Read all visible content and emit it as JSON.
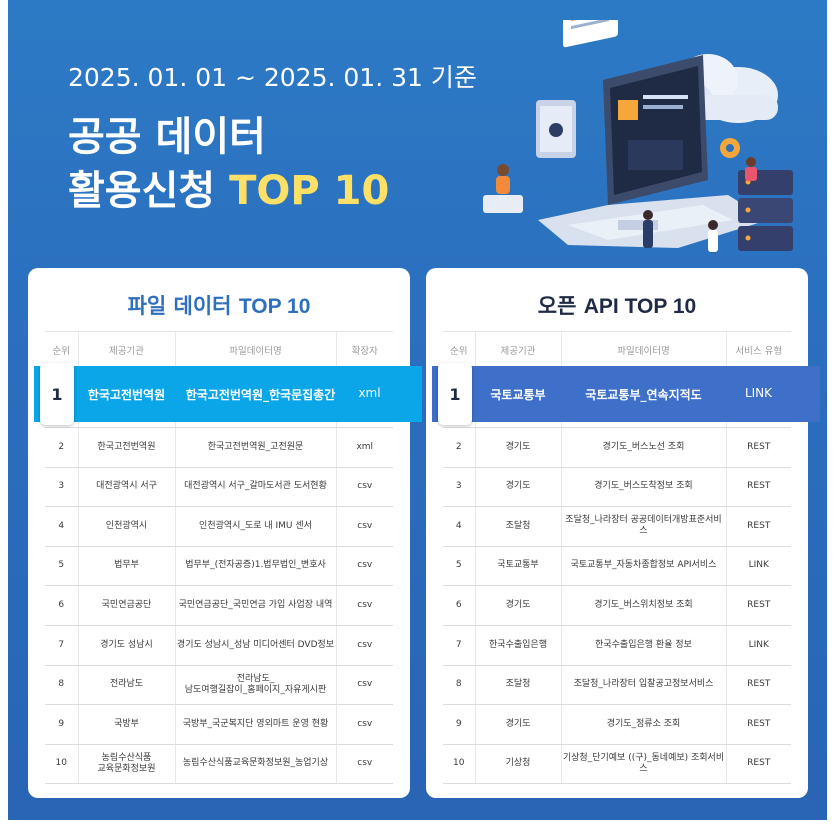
{
  "header": {
    "date_range": "2025. 01. 01 ~ 2025. 01. 31  기준",
    "title_line1": "공공 데이터",
    "title_line2_prefix": "활용신청 ",
    "title_line2_highlight": "TOP 10"
  },
  "colors": {
    "background": "#2b6fbe",
    "highlight_text": "#ffe066",
    "left_rank1_bg": "#0aa6e8",
    "right_rank1_bg": "#3e6fc9"
  },
  "file_data": {
    "title_ko": "파일 데이터 ",
    "title_en": "TOP 10",
    "headers": [
      "순위",
      "제공기관",
      "파일데이터명",
      "확장자"
    ],
    "rows": [
      {
        "rank": "1",
        "org": "한국고전번역원",
        "name": "한국고전번역원_한국문집총간",
        "ext": "xml"
      },
      {
        "rank": "2",
        "org": "한국고전번역원",
        "name": "한국고전번역원_고전원문",
        "ext": "xml"
      },
      {
        "rank": "3",
        "org": "대전광역시 서구",
        "name": "대전광역시 서구_갈마도서관 도서현황",
        "ext": "csv"
      },
      {
        "rank": "4",
        "org": "인천광역시",
        "name": "인천광역시_도로 내 IMU 센서",
        "ext": "csv"
      },
      {
        "rank": "5",
        "org": "법무부",
        "name": "법무부_(전자공증)1.법무법인_변호사",
        "ext": "csv"
      },
      {
        "rank": "6",
        "org": "국민연금공단",
        "name": "국민연금공단_국민연금 가입 사업장 내역",
        "ext": "csv"
      },
      {
        "rank": "7",
        "org": "경기도 성남시",
        "name": "경기도 성남시_성남 미디어센터 DVD정보",
        "ext": "csv"
      },
      {
        "rank": "8",
        "org": "전라남도",
        "name_line1": "전라남도_",
        "name_line2": "남도여행길잡이_홈페이지_자유게시판",
        "ext": "csv"
      },
      {
        "rank": "9",
        "org": "국방부",
        "name": "국방부_국군복지단 영외마트 운영 현황",
        "ext": "csv"
      },
      {
        "rank": "10",
        "org_line1": "농림수산식품",
        "org_line2": "교육문화정보원",
        "name": "농림수산식품교육문화정보원_농업기상",
        "ext": "csv"
      }
    ]
  },
  "open_api": {
    "title_ko": "오픈 ",
    "title_en": "API TOP 10",
    "headers": [
      "순위",
      "제공기관",
      "파일데이터명",
      "서비스 유형"
    ],
    "rows": [
      {
        "rank": "1",
        "org": "국토교통부",
        "name": "국토교통부_연속지적도",
        "type": "LINK"
      },
      {
        "rank": "2",
        "org": "경기도",
        "name": "경기도_버스노선 조회",
        "type": "REST"
      },
      {
        "rank": "3",
        "org": "경기도",
        "name": "경기도_버스도착정보 조회",
        "type": "REST"
      },
      {
        "rank": "4",
        "org": "조달청",
        "name": "조달청_나라장터 공공데이터개방표준서비스",
        "type": "REST"
      },
      {
        "rank": "5",
        "org": "국토교통부",
        "name": "국토교통부_자동차종합정보 API서비스",
        "type": "LINK"
      },
      {
        "rank": "6",
        "org": "경기도",
        "name": "경기도_버스위치정보 조회",
        "type": "REST"
      },
      {
        "rank": "7",
        "org": "한국수출입은행",
        "name": "한국수출입은행 환율 정보",
        "type": "LINK"
      },
      {
        "rank": "8",
        "org": "조달청",
        "name": "조달청_나라장터 입찰공고정보서비스",
        "type": "REST"
      },
      {
        "rank": "9",
        "org": "경기도",
        "name": "경기도_정류소 조회",
        "type": "REST"
      },
      {
        "rank": "10",
        "org": "기상청",
        "name": "기상청_단기예보 ((구)_동네예보) 조회서비스",
        "type": "REST"
      }
    ]
  },
  "illustration": {
    "icons": [
      "cloud-icon",
      "laptop-icon",
      "server-rack-icon",
      "gear-icon",
      "chart-panel-icon",
      "person-icon"
    ]
  }
}
